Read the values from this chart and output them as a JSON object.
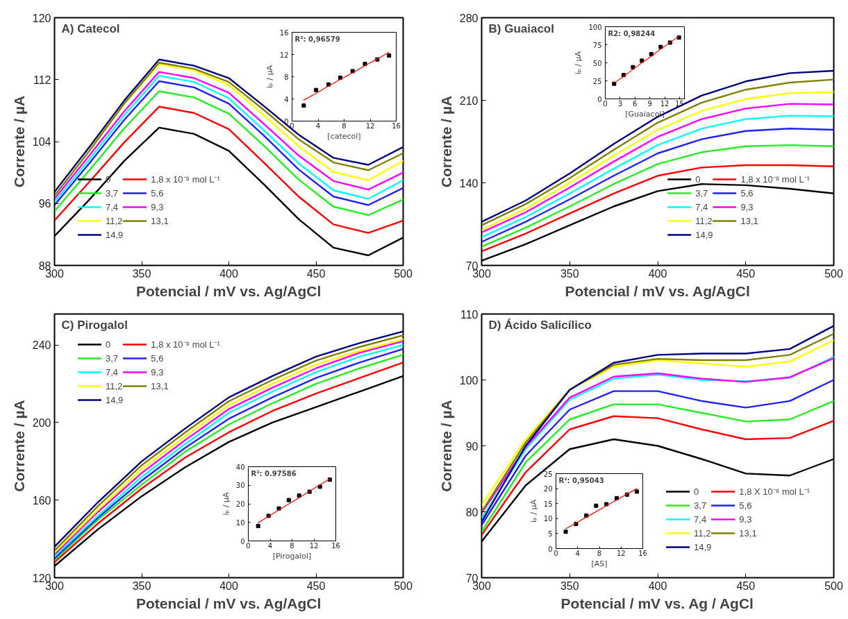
{
  "chart_data": [
    {
      "type": "line",
      "title": "A) Catecol",
      "xlabel": "Potencial / mV vs. Ag/AgCl",
      "ylabel": "Corrente / µA",
      "xlim": [
        300,
        500
      ],
      "ylim": [
        88,
        120
      ],
      "xticks": [
        300,
        350,
        400,
        450,
        500
      ],
      "yticks": [
        88,
        96,
        104,
        112,
        120
      ],
      "legend": "bottom left",
      "x": [
        300,
        320,
        340,
        360,
        380,
        400,
        420,
        440,
        460,
        480,
        500
      ],
      "series": [
        {
          "name": "0",
          "color": "#000000",
          "values": [
            91.8,
            96.5,
            101.5,
            105.8,
            105,
            102.8,
            98.5,
            94,
            90.3,
            89.3,
            91.6
          ]
        },
        {
          "name": "1,8 x 10⁻⁸ mol L⁻¹",
          "color": "#ff0000",
          "values": [
            93.8,
            98.8,
            103.9,
            108.5,
            107.7,
            105.6,
            101.3,
            96.9,
            93.3,
            92.2,
            93.8
          ]
        },
        {
          "name": "3,7",
          "color": "#22ee22",
          "values": [
            95,
            100.3,
            105.7,
            110.5,
            109.7,
            107.6,
            103.5,
            99.1,
            95.6,
            94.5,
            96.5
          ]
        },
        {
          "name": "5,6",
          "color": "#2020ff",
          "values": [
            95.8,
            101.2,
            106.8,
            111.8,
            111,
            108.9,
            104.8,
            100.4,
            96.9,
            95.8,
            98
          ]
        },
        {
          "name": "7,4",
          "color": "#00ffff",
          "values": [
            96.2,
            101.7,
            107.4,
            112.5,
            111.7,
            109.6,
            105.5,
            101.2,
            97.7,
            96.6,
            99
          ]
        },
        {
          "name": "9,3",
          "color": "#ff00ff",
          "values": [
            96.6,
            102.2,
            107.9,
            113,
            112.2,
            110.3,
            106.3,
            102.2,
            98.9,
            97.8,
            100
          ]
        },
        {
          "name": "11,2",
          "color": "#ffff00",
          "values": [
            97.6,
            103.2,
            108.9,
            114,
            113.2,
            111.3,
            107.4,
            103.4,
            100.1,
            99,
            101.5
          ]
        },
        {
          "name": "13,1",
          "color": "#808000",
          "values": [
            97,
            102.8,
            108.9,
            114.2,
            113.4,
            111.7,
            108.1,
            104.3,
            101.3,
            100.3,
            102.5
          ]
        },
        {
          "name": "14,9",
          "color": "#000080",
          "values": [
            97.5,
            103.3,
            109.3,
            114.6,
            113.8,
            112.2,
            108.6,
            104.9,
            101.9,
            101,
            103.3
          ]
        }
      ]
    },
    {
      "type": "scatter",
      "xlabel": "[catecol]",
      "ylabel": "iₚ / µA",
      "annotations": [
        "R²: 0,96579"
      ],
      "xlim": [
        0,
        16
      ],
      "ylim": [
        0,
        16
      ],
      "xticks": [
        0,
        4,
        8,
        12,
        16
      ],
      "yticks": [
        0,
        4,
        8,
        12,
        16
      ],
      "x": [
        1.8,
        3.7,
        5.6,
        7.4,
        9.3,
        11.2,
        13.1,
        14.9
      ],
      "series": [
        {
          "color": "#000000",
          "marker": "square",
          "values": [
            2.8,
            5.6,
            6.6,
            7.8,
            9.0,
            10.3,
            11.1,
            11.8
          ]
        },
        {
          "type": "line",
          "color": "#ff0000",
          "values": [
            3.8,
            5.0,
            6.3,
            7.5,
            8.7,
            10.0,
            11.2,
            12.4
          ]
        }
      ]
    },
    {
      "type": "line",
      "title": "B) Guaiacol",
      "xlabel": "Potencial / mV vs. Ag/AgCl",
      "ylabel": "Corrente / µA",
      "xlim": [
        300,
        500
      ],
      "ylim": [
        70,
        280
      ],
      "xticks": [
        300,
        350,
        400,
        450,
        500
      ],
      "yticks": [
        70,
        140,
        210,
        280
      ],
      "legend": "bottom right",
      "x": [
        300,
        325,
        350,
        375,
        400,
        425,
        450,
        475,
        500
      ],
      "series": [
        {
          "name": "0",
          "color": "#000000",
          "values": [
            74,
            88,
            104,
            120,
            133,
            139,
            138,
            135,
            131
          ]
        },
        {
          "name": "1,8 x 10⁻⁸ mol L⁻¹",
          "color": "#ff0000",
          "values": [
            82,
            97,
            114,
            131,
            146,
            153,
            155,
            155,
            154
          ]
        },
        {
          "name": "3,7",
          "color": "#22ee22",
          "values": [
            86,
            102,
            120,
            139,
            156,
            166,
            171,
            172,
            171
          ]
        },
        {
          "name": "5,6",
          "color": "#2020ff",
          "values": [
            90,
            107,
            126,
            146,
            165,
            177,
            184,
            186,
            185
          ]
        },
        {
          "name": "7,4",
          "color": "#00ffff",
          "values": [
            94,
            111,
            131,
            152,
            172,
            186,
            194,
            197,
            196.5
          ]
        },
        {
          "name": "9,3",
          "color": "#ff00ff",
          "values": [
            98,
            115,
            136,
            158,
            179,
            194,
            203,
            207,
            206.5
          ]
        },
        {
          "name": "11,2",
          "color": "#ffff00",
          "values": [
            100,
            118,
            140,
            163,
            185,
            201,
            211,
            216,
            217
          ]
        },
        {
          "name": "13,1",
          "color": "#808000",
          "values": [
            104,
            122,
            144,
            168,
            191,
            208,
            219,
            225,
            227.6
          ]
        },
        {
          "name": "14,9",
          "color": "#000080",
          "values": [
            107,
            125,
            148,
            173,
            196,
            214,
            226,
            233,
            235
          ]
        }
      ]
    },
    {
      "type": "scatter",
      "xlabel": "[Guaiacol]",
      "ylabel": "iₚ / µA",
      "annotations": [
        "R2: 0,98244"
      ],
      "xlim": [
        0,
        16
      ],
      "ylim": [
        0,
        100
      ],
      "xticks": [
        0,
        3,
        6,
        9,
        12,
        15
      ],
      "yticks": [
        0,
        25,
        50,
        75,
        100
      ],
      "x": [
        1.8,
        3.7,
        5.6,
        7.4,
        9.3,
        11.2,
        13.1,
        14.9
      ],
      "series": [
        {
          "color": "#000000",
          "marker": "square",
          "values": [
            21,
            33,
            44,
            53,
            62,
            72,
            78,
            85
          ]
        },
        {
          "type": "line",
          "color": "#ff0000",
          "values": [
            22,
            31,
            41,
            50,
            59,
            69,
            78,
            87
          ]
        }
      ]
    },
    {
      "type": "line",
      "title": "C) Pirogalol",
      "xlabel": "Potencial / mV vs. Ag/AgCl",
      "ylabel": "Corrente / µA",
      "xlim": [
        300,
        500
      ],
      "ylim": [
        120,
        256
      ],
      "xticks": [
        300,
        350,
        400,
        450,
        500
      ],
      "yticks": [
        120,
        160,
        200,
        240
      ],
      "legend": "top left",
      "x": [
        300,
        325,
        350,
        375,
        400,
        425,
        450,
        475,
        500
      ],
      "series": [
        {
          "name": "0",
          "color": "#000000",
          "values": [
            126,
            145,
            162,
            177,
            190,
            200,
            208,
            216,
            224
          ]
        },
        {
          "name": "1,8 x 10⁻⁸ mol L⁻¹",
          "color": "#ff0000",
          "values": [
            128,
            148,
            166,
            182,
            195,
            206,
            215,
            223,
            231
          ]
        },
        {
          "name": "3,7",
          "color": "#22ee22",
          "values": [
            129,
            150,
            168,
            185,
            199,
            210,
            220,
            228,
            235
          ]
        },
        {
          "name": "5,6",
          "color": "#2020ff",
          "values": [
            130,
            151,
            170,
            187,
            202,
            213,
            223,
            231,
            238
          ]
        },
        {
          "name": "7,4",
          "color": "#00ffff",
          "values": [
            131,
            152,
            172,
            189,
            205,
            216,
            226,
            234,
            240
          ]
        },
        {
          "name": "9,3",
          "color": "#ff00ff",
          "values": [
            132,
            154,
            174,
            191,
            207,
            218,
            228,
            236,
            242
          ]
        },
        {
          "name": "11,2",
          "color": "#ffff00",
          "values": [
            133,
            155,
            176,
            193,
            209,
            220,
            230,
            237,
            243
          ]
        },
        {
          "name": "13,1",
          "color": "#808000",
          "values": [
            134,
            157,
            178,
            195,
            211,
            222,
            232,
            239,
            245
          ]
        },
        {
          "name": "14,9",
          "color": "#000080",
          "values": [
            136,
            159,
            180,
            197,
            213,
            224,
            234,
            241,
            247
          ]
        }
      ]
    },
    {
      "type": "scatter",
      "xlabel": "[Pirogalol]",
      "ylabel": "iₚ / µA",
      "annotations": [
        "R²: 0.97586"
      ],
      "xlim": [
        0,
        16
      ],
      "ylim": [
        0,
        40
      ],
      "xticks": [
        0,
        4,
        8,
        12,
        16
      ],
      "yticks": [
        0,
        10,
        20,
        30,
        40
      ],
      "x": [
        1.8,
        3.7,
        5.6,
        7.4,
        9.3,
        11.2,
        13.1,
        14.9
      ],
      "series": [
        {
          "color": "#000000",
          "marker": "square",
          "values": [
            8,
            13.5,
            17.5,
            22,
            24.5,
            26.5,
            29.2,
            33
          ]
        },
        {
          "type": "line",
          "color": "#ff0000",
          "values": [
            9.8,
            13.2,
            16.7,
            19.9,
            23.3,
            26.8,
            30.2,
            33.5
          ]
        }
      ]
    },
    {
      "type": "line",
      "title": "D) Ácido Salicílico",
      "xlabel": "Potencial / mV vs. Ag / AgCl",
      "ylabel": "Corrente / µA",
      "xlim": [
        300,
        500
      ],
      "ylim": [
        70,
        110
      ],
      "xticks": [
        300,
        350,
        400,
        450,
        500
      ],
      "yticks": [
        70,
        80,
        90,
        100,
        110
      ],
      "legend": "bottom right",
      "x": [
        300,
        325,
        350,
        375,
        400,
        425,
        450,
        475,
        500
      ],
      "series": [
        {
          "name": "0",
          "color": "#000000",
          "values": [
            75.5,
            84,
            89.5,
            91,
            90,
            88,
            85.8,
            85.5,
            88
          ]
        },
        {
          "name": "1,8 X 10⁻⁸ mol L⁻¹",
          "color": "#ff0000",
          "values": [
            76.5,
            86,
            92.5,
            94.5,
            94.2,
            92.5,
            91,
            91.2,
            93.8
          ]
        },
        {
          "name": "3,7",
          "color": "#22ee22",
          "values": [
            77,
            87.5,
            94,
            96.3,
            96.3,
            95,
            93.7,
            94,
            96.8
          ]
        },
        {
          "name": "5,6",
          "color": "#2020ff",
          "values": [
            78,
            88.5,
            95.5,
            98.3,
            98.3,
            96.8,
            95.8,
            96.8,
            100
          ]
        },
        {
          "name": "7,4",
          "color": "#00ffff",
          "values": [
            79,
            89.5,
            97,
            100.2,
            100.8,
            100,
            99.8,
            100.3,
            103.5
          ]
        },
        {
          "name": "9,3",
          "color": "#ff00ff",
          "values": [
            79.8,
            89.8,
            97.3,
            100.5,
            101,
            100.2,
            99.7,
            100.4,
            103.3
          ]
        },
        {
          "name": "11,2",
          "color": "#ffff00",
          "values": [
            81,
            91,
            98.5,
            102,
            103,
            102.5,
            102,
            102.8,
            106
          ]
        },
        {
          "name": "13,1",
          "color": "#808000",
          "values": [
            80,
            90.5,
            98.5,
            102.3,
            103.2,
            103,
            103,
            103.8,
            107
          ]
        },
        {
          "name": "14,9",
          "color": "#000080",
          "values": [
            78.5,
            90,
            98.5,
            102.6,
            103.8,
            104,
            104,
            104.7,
            108.2
          ]
        }
      ]
    },
    {
      "type": "scatter",
      "xlabel": "[AS]",
      "ylabel": "iₚ / µA",
      "annotations": [
        "R²: 0,95043"
      ],
      "xlim": [
        0,
        16
      ],
      "ylim": [
        0,
        25
      ],
      "xticks": [
        0,
        4,
        8,
        12,
        16
      ],
      "yticks": [
        0,
        5,
        10,
        15,
        20,
        25
      ],
      "x": [
        1.8,
        3.7,
        5.6,
        7.4,
        9.3,
        11.2,
        13.1,
        14.9
      ],
      "series": [
        {
          "color": "#000000",
          "marker": "square",
          "values": [
            5.6,
            8.2,
            11,
            14.3,
            14.8,
            16.8,
            18,
            19
          ]
        },
        {
          "type": "line",
          "color": "#ff0000",
          "values": [
            6.6,
            8.5,
            10.5,
            12.3,
            14.3,
            16.2,
            18.2,
            20.0
          ]
        }
      ]
    }
  ]
}
